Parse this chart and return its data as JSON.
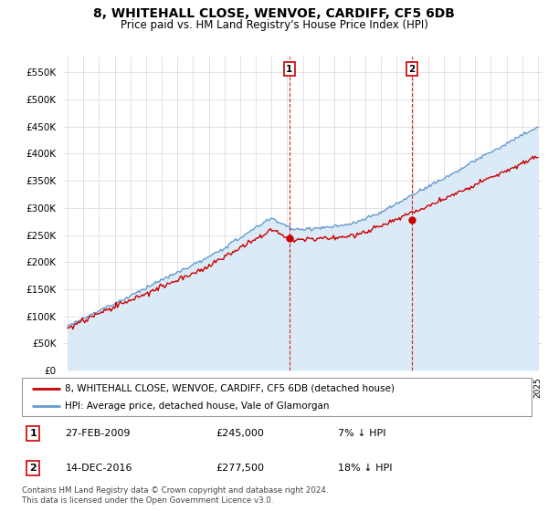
{
  "title": "8, WHITEHALL CLOSE, WENVOE, CARDIFF, CF5 6DB",
  "subtitle": "Price paid vs. HM Land Registry's House Price Index (HPI)",
  "ylabel_ticks": [
    "£0",
    "£50K",
    "£100K",
    "£150K",
    "£200K",
    "£250K",
    "£300K",
    "£350K",
    "£400K",
    "£450K",
    "£500K",
    "£550K"
  ],
  "ytick_vals": [
    0,
    50000,
    100000,
    150000,
    200000,
    250000,
    300000,
    350000,
    400000,
    450000,
    500000,
    550000
  ],
  "ylim": [
    0,
    580000
  ],
  "legend_house": "8, WHITEHALL CLOSE, WENVOE, CARDIFF, CF5 6DB (detached house)",
  "legend_hpi": "HPI: Average price, detached house, Vale of Glamorgan",
  "sale1_label": "1",
  "sale1_date": "27-FEB-2009",
  "sale1_price": "£245,000",
  "sale1_hpi": "7% ↓ HPI",
  "sale2_label": "2",
  "sale2_date": "14-DEC-2016",
  "sale2_price": "£277,500",
  "sale2_hpi": "18% ↓ HPI",
  "footer": "Contains HM Land Registry data © Crown copyright and database right 2024.\nThis data is licensed under the Open Government Licence v3.0.",
  "house_color": "#cc0000",
  "hpi_color": "#6699cc",
  "hpi_fill_color": "#daeaf7",
  "sale1_year": 2009.15,
  "sale1_value": 245000,
  "sale2_year": 2016.95,
  "sale2_value": 277500,
  "xlim_left": 1994.7,
  "xlim_right": 2025.3,
  "xtick_start": 1995,
  "xtick_end": 2025
}
